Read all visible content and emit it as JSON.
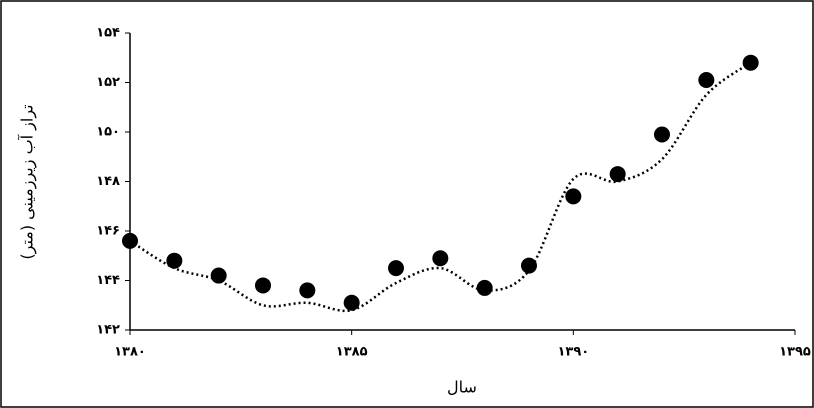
{
  "chart_data": {
    "type": "scatter",
    "x_label": "سال",
    "y_label": "تراز آب زیرزمینی (متر)",
    "x": [
      1380,
      1381,
      1382,
      1383,
      1384,
      1385,
      1386,
      1387,
      1388,
      1389,
      1390,
      1391,
      1392,
      1393,
      1394
    ],
    "series": [
      {
        "color": "#000000",
        "values": [
          145.6,
          144.8,
          144.2,
          143.8,
          143.6,
          143.1,
          144.5,
          144.9,
          143.7,
          144.6,
          147.4,
          148.3,
          149.9,
          152.1,
          152.8
        ]
      },
      {
        "color": "#000000",
        "style": "dotted",
        "values": [
          145.6,
          144.5,
          144.0,
          143.0,
          143.1,
          142.8,
          143.9,
          144.5,
          143.6,
          144.4,
          148.1,
          148.0,
          148.9,
          151.5,
          152.8
        ]
      }
    ],
    "xlim": [
      1380,
      1395
    ],
    "xticks": [
      {
        "value": 1380,
        "label": "۱۳۸۰"
      },
      {
        "value": 1385,
        "label": "۱۳۸۵"
      },
      {
        "value": 1390,
        "label": "۱۳۹۰"
      },
      {
        "value": 1395,
        "label": "۱۳۹۵"
      }
    ],
    "ylim": [
      142,
      154
    ],
    "yticks": [
      {
        "value": 142,
        "label": "۱۴۲"
      },
      {
        "value": 144,
        "label": "۱۴۴"
      },
      {
        "value": 146,
        "label": "۱۴۶"
      },
      {
        "value": 148,
        "label": "۱۴۸"
      },
      {
        "value": 150,
        "label": "۱۵۰"
      },
      {
        "value": 152,
        "label": "۱۵۲"
      },
      {
        "value": 154,
        "label": "۱۵۴"
      }
    ]
  }
}
